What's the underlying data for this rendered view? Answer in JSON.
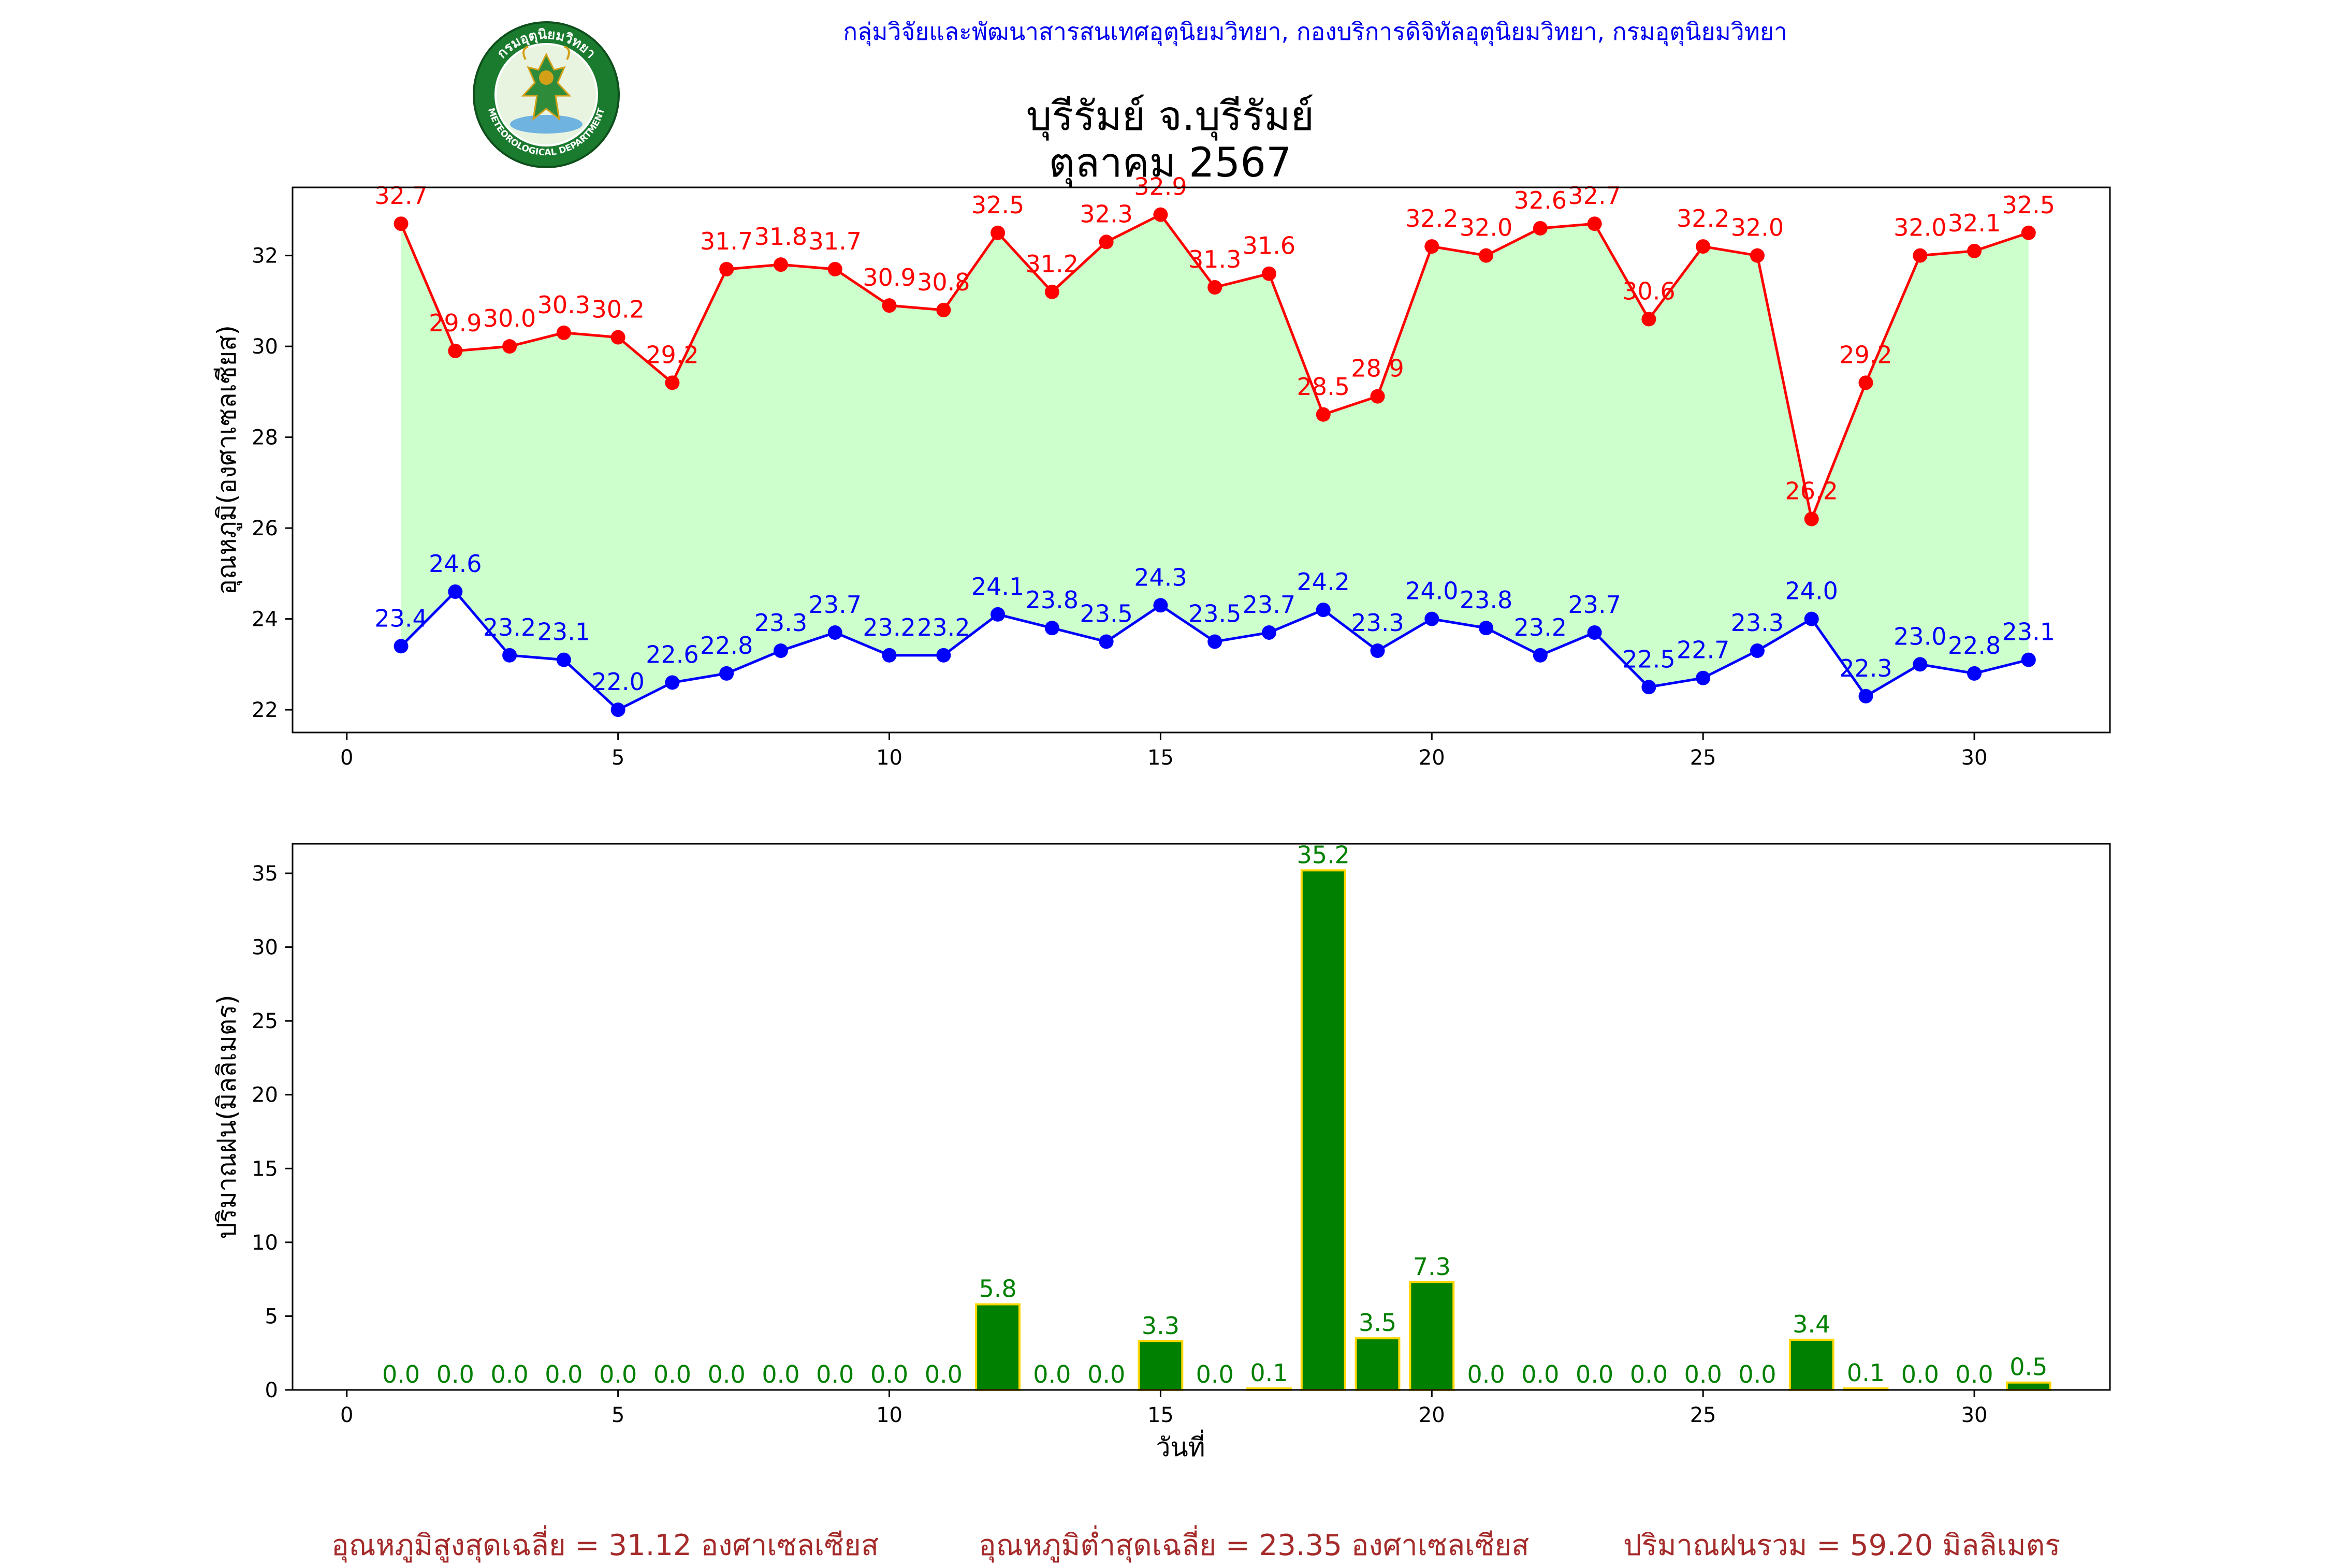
{
  "header": {
    "org_line": "กลุ่มวิจัยและพัฒนาสารสนเทศอุตุนิยมวิทยา, กองบริการดิจิทัลอุตุนิยมวิทยา, กรมอุตุนิยมวิทยา",
    "title_station": "บุรีรัมย์ จ.บุรีรัมย์",
    "title_month": "ตุลาคม 2567",
    "logo": {
      "text_top": "กรมอุตุนิยมวิทยา",
      "text_bottom": "METEOROLOGICAL DEPARTMENT",
      "colors": {
        "ring": "#1a7a2e",
        "inner": "#ffffff",
        "figure": "#2e8b3a",
        "gold": "#d4a017"
      }
    }
  },
  "chart_data": [
    {
      "type": "line",
      "ylabel": "อุณหภูมิ(องศาเซลเซียส)",
      "xlabel": "",
      "xlim": [
        -1,
        32.5
      ],
      "ylim": [
        21.5,
        33.5
      ],
      "xticks": [
        0,
        5,
        10,
        15,
        20,
        25,
        30
      ],
      "yticks": [
        22,
        24,
        26,
        28,
        30,
        32
      ],
      "fill_between": {
        "color": "#ccffcc"
      },
      "x": [
        1,
        2,
        3,
        4,
        5,
        6,
        7,
        8,
        9,
        10,
        11,
        12,
        13,
        14,
        15,
        16,
        17,
        18,
        19,
        20,
        21,
        22,
        23,
        24,
        25,
        26,
        27,
        28,
        29,
        30,
        31
      ],
      "series": [
        {
          "color": "#ff0000",
          "values": [
            32.7,
            29.9,
            30.0,
            30.3,
            30.2,
            29.2,
            31.7,
            31.8,
            31.7,
            30.9,
            30.8,
            32.5,
            31.2,
            32.3,
            32.9,
            31.3,
            31.6,
            28.5,
            28.9,
            32.2,
            32.0,
            32.6,
            32.7,
            30.6,
            32.2,
            32.0,
            26.2,
            29.2,
            32.0,
            32.1,
            32.5
          ]
        },
        {
          "color": "#0000ff",
          "values": [
            23.4,
            24.6,
            23.2,
            23.1,
            22.0,
            22.6,
            22.8,
            23.3,
            23.7,
            23.2,
            23.2,
            24.1,
            23.8,
            23.5,
            24.3,
            23.5,
            23.7,
            24.2,
            23.3,
            24.0,
            23.8,
            23.2,
            23.7,
            22.5,
            22.7,
            23.3,
            24.0,
            22.3,
            23.0,
            22.8,
            23.1
          ]
        }
      ]
    },
    {
      "type": "bar",
      "ylabel": "ปริมาณฝน(มิลลิเมตร)",
      "xlabel": "วันที่",
      "xlim": [
        -1,
        32.5
      ],
      "ylim": [
        0,
        37
      ],
      "xticks": [
        0,
        5,
        10,
        15,
        20,
        25,
        30
      ],
      "yticks": [
        0,
        5,
        10,
        15,
        20,
        25,
        30,
        35
      ],
      "bar_color": "#008000",
      "edge_color": "#ffd700",
      "label_color": "#008000",
      "x": [
        1,
        2,
        3,
        4,
        5,
        6,
        7,
        8,
        9,
        10,
        11,
        12,
        13,
        14,
        15,
        16,
        17,
        18,
        19,
        20,
        21,
        22,
        23,
        24,
        25,
        26,
        27,
        28,
        29,
        30,
        31
      ],
      "values": [
        0.0,
        0.0,
        0.0,
        0.0,
        0.0,
        0.0,
        0.0,
        0.0,
        0.0,
        0.0,
        0.0,
        5.8,
        0.0,
        0.0,
        3.3,
        0.0,
        0.1,
        35.2,
        3.5,
        7.3,
        0.0,
        0.0,
        0.0,
        0.0,
        0.0,
        0.0,
        3.4,
        0.1,
        0.0,
        0.0,
        0.5
      ]
    }
  ],
  "footer": {
    "avg_max": "อุณหภูมิสูงสุดเฉลี่ย = 31.12 องศาเซลเซียส",
    "avg_min": "อุณหภูมิต่ำสุดเฉลี่ย = 23.35 องศาเซลเซียส",
    "total_rain": "ปริมาณฝนรวม = 59.20 มิลลิเมตร"
  }
}
